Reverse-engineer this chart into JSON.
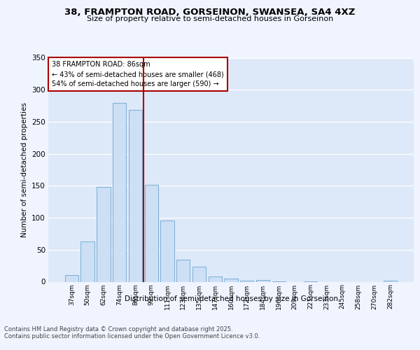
{
  "title": "38, FRAMPTON ROAD, GORSEINON, SWANSEA, SA4 4XZ",
  "subtitle": "Size of property relative to semi-detached houses in Gorseinon",
  "xlabel": "Distribution of semi-detached houses by size in Gorseinon",
  "ylabel": "Number of semi-detached properties",
  "categories": [
    "37sqm",
    "50sqm",
    "62sqm",
    "74sqm",
    "86sqm",
    "99sqm",
    "111sqm",
    "123sqm",
    "135sqm",
    "147sqm",
    "160sqm",
    "172sqm",
    "184sqm",
    "196sqm",
    "209sqm",
    "221sqm",
    "233sqm",
    "245sqm",
    "258sqm",
    "270sqm",
    "282sqm"
  ],
  "values": [
    10,
    63,
    148,
    280,
    268,
    152,
    96,
    35,
    23,
    8,
    5,
    2,
    3,
    1,
    0,
    1,
    0,
    0,
    0,
    0,
    2
  ],
  "bar_color": "#ccdff5",
  "bar_edge_color": "#7aafd4",
  "highlight_color": "#aa0000",
  "annotation_title": "38 FRAMPTON ROAD: 86sqm",
  "annotation_line1": "← 43% of semi-detached houses are smaller (468)",
  "annotation_line2": "54% of semi-detached houses are larger (590) →",
  "ylim": [
    0,
    350
  ],
  "yticks": [
    0,
    50,
    100,
    150,
    200,
    250,
    300,
    350
  ],
  "fig_bg": "#f0f4ff",
  "plot_bg": "#dde8f8",
  "footer_line1": "Contains HM Land Registry data © Crown copyright and database right 2025.",
  "footer_line2": "Contains public sector information licensed under the Open Government Licence v3.0."
}
